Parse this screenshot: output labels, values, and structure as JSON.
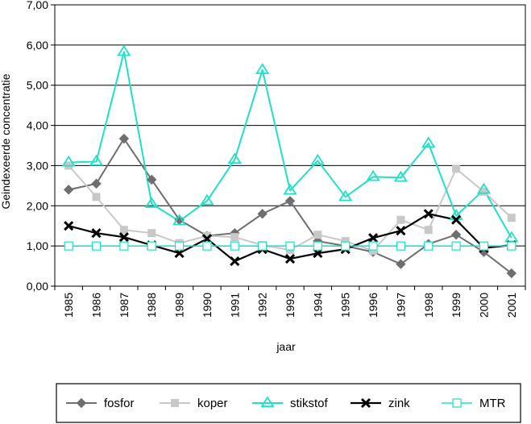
{
  "chart_data": {
    "type": "line",
    "title": "",
    "xlabel": "jaar",
    "ylabel": "Geindexeerde concentratie",
    "ylim": [
      0,
      7
    ],
    "yticks": [
      "0,00",
      "1,00",
      "2,00",
      "3,00",
      "4,00",
      "5,00",
      "6,00",
      "7,00"
    ],
    "grid": "horizontal",
    "legend_position": "bottom",
    "categories": [
      "1985",
      "1986",
      "1987",
      "1988",
      "1989",
      "1990",
      "1991",
      "1992",
      "1993",
      "1994",
      "1995",
      "1996",
      "1997",
      "1998",
      "1999",
      "2000",
      "2001"
    ],
    "series": [
      {
        "name": "fosfor",
        "color": "#6e6e6e",
        "marker": "diamond",
        "values": [
          2.4,
          2.55,
          3.67,
          2.65,
          1.65,
          1.25,
          1.32,
          1.8,
          2.12,
          1.12,
          1.0,
          0.85,
          0.55,
          1.05,
          1.28,
          0.85,
          0.32
        ]
      },
      {
        "name": "koper",
        "color": "#c8c8c8",
        "marker": "square",
        "values": [
          3.0,
          2.22,
          1.4,
          1.32,
          1.07,
          1.25,
          1.22,
          1.02,
          0.9,
          1.28,
          1.12,
          0.88,
          1.65,
          1.4,
          2.92,
          2.35,
          1.7
        ]
      },
      {
        "name": "stikstof",
        "color": "#20e0c8",
        "marker": "triangle",
        "values": [
          3.08,
          3.1,
          5.83,
          2.05,
          1.62,
          2.12,
          3.15,
          5.38,
          2.38,
          3.12,
          2.22,
          2.72,
          2.7,
          3.55,
          1.75,
          2.4,
          1.2
        ]
      },
      {
        "name": "zink",
        "color": "#000000",
        "marker": "x",
        "values": [
          1.5,
          1.32,
          1.22,
          1.02,
          0.82,
          1.18,
          0.62,
          0.92,
          0.68,
          0.82,
          0.92,
          1.2,
          1.38,
          1.8,
          1.65,
          0.95,
          1.02
        ]
      },
      {
        "name": "MTR",
        "color": "#20e0c8",
        "marker": "open-square",
        "values": [
          1.0,
          1.0,
          1.0,
          1.0,
          1.0,
          1.0,
          1.0,
          1.0,
          1.0,
          1.0,
          1.0,
          1.0,
          1.0,
          1.0,
          1.0,
          1.0,
          1.0
        ]
      }
    ]
  }
}
